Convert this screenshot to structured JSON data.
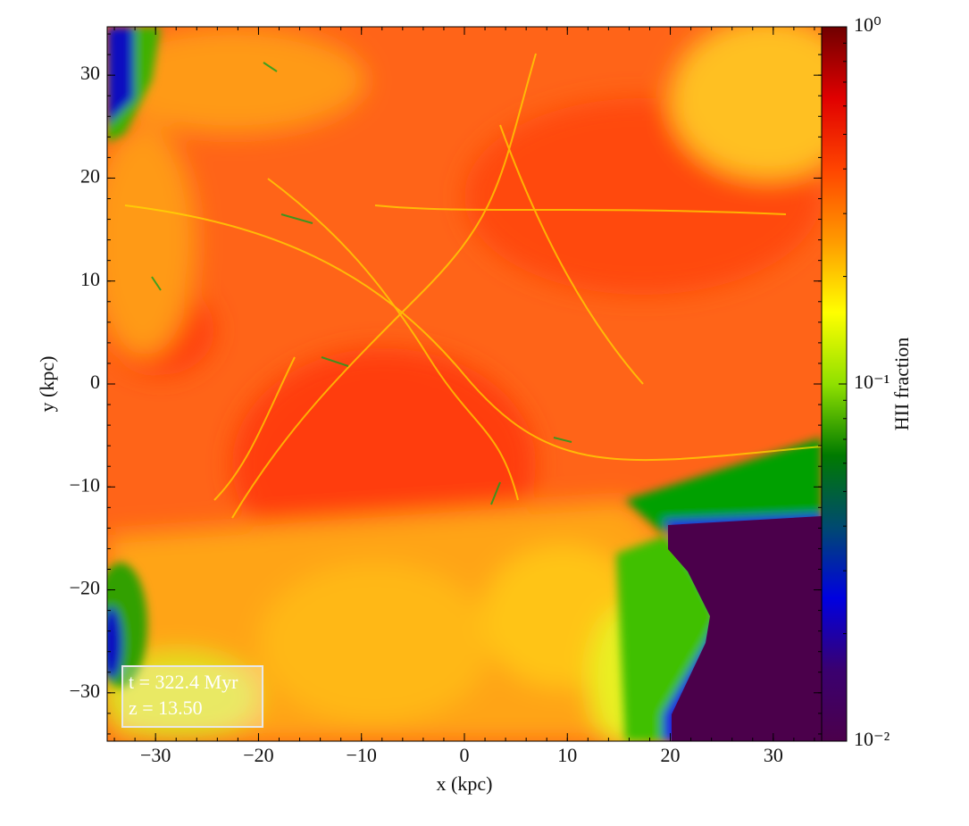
{
  "chart_data": {
    "type": "image",
    "xlabel": "x  (kpc)",
    "ylabel": "y  (kpc)",
    "xlim": [
      -34.7,
      34.7
    ],
    "ylim": [
      -34.7,
      34.7
    ],
    "xticks": [
      {
        "value": -30,
        "label": "−30"
      },
      {
        "value": -20,
        "label": "−20"
      },
      {
        "value": -10,
        "label": "−10"
      },
      0,
      10,
      20,
      30
    ],
    "yticks": [
      {
        "value": -30,
        "label": "−30"
      },
      {
        "value": -20,
        "label": "−20"
      },
      {
        "value": -10,
        "label": "−10"
      },
      0,
      10,
      20,
      30
    ],
    "colorbar": {
      "label": "HII fraction",
      "log": true,
      "clim": [
        0.01,
        1
      ],
      "ticks": [
        {
          "value": 0.01,
          "label": "10⁻²"
        },
        {
          "value": 0.1,
          "label": "10⁻¹"
        },
        {
          "value": 1,
          "label": "10⁰"
        }
      ],
      "colormap": [
        "#4b004b",
        "#3a0070",
        "#0000e0",
        "#004a70",
        "#007a00",
        "#90e000",
        "#ffff00",
        "#ff9a00",
        "#ff4500",
        "#e00000",
        "#700000"
      ]
    },
    "annotations": [
      "t = 322.4 Myr",
      "z = 13.50"
    ]
  }
}
